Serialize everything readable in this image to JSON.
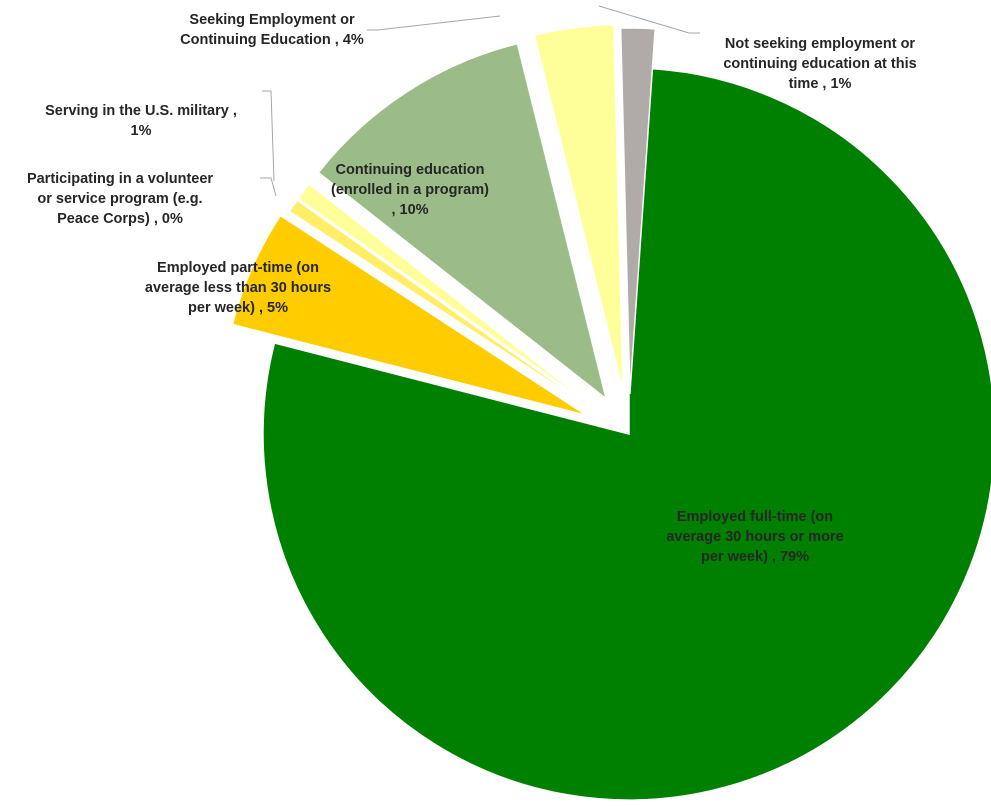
{
  "chart_data": {
    "type": "pie",
    "title": "",
    "slices": [
      {
        "key": "full-time",
        "label_lines": [
          "Employed full-time (on",
          "average 30 hours or more",
          "per week) , 79%"
        ],
        "percent": 79,
        "color": "#008000"
      },
      {
        "key": "part-time",
        "label_lines": [
          "Employed part-time (on",
          "average less than 30 hours",
          "per week) , 5%"
        ],
        "percent": 5,
        "color": "#ffcc00"
      },
      {
        "key": "volunteer",
        "label_lines": [
          "Participating in a volunteer",
          "or service program (e.g.",
          "Peace Corps) , 0%"
        ],
        "percent": 0,
        "color": "#ffee66"
      },
      {
        "key": "military",
        "label_lines": [
          "Serving in the U.S. military ,",
          "1%"
        ],
        "percent": 1,
        "color": "#ffff99"
      },
      {
        "key": "continuing-education",
        "label_lines": [
          "Continuing education",
          "(enrolled in a program)",
          ", 10%"
        ],
        "percent": 10,
        "color": "#9bbb88"
      },
      {
        "key": "seeking",
        "label_lines": [
          "Seeking Employment or",
          "Continuing Education , 4%"
        ],
        "percent": 4,
        "color": "#ffff99"
      },
      {
        "key": "not-seeking",
        "label_lines": [
          "Not seeking employment or",
          "continuing education at this",
          "time , 1%"
        ],
        "percent": 1,
        "color": "#b0aaa8"
      }
    ]
  }
}
